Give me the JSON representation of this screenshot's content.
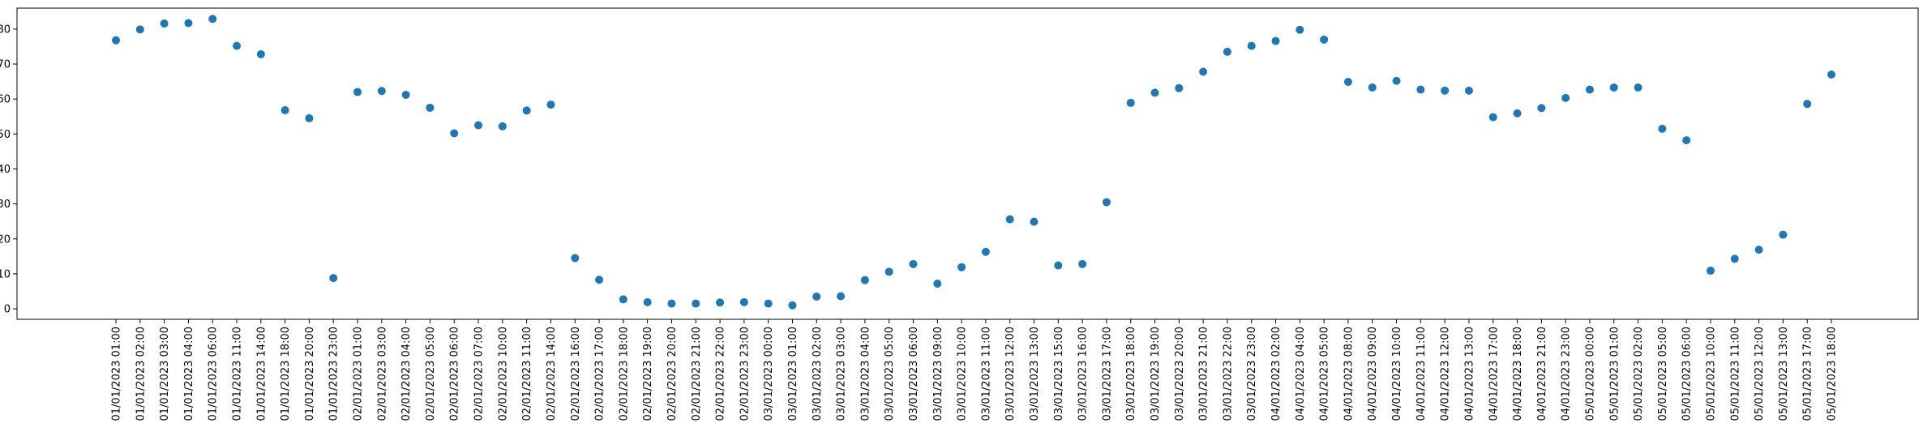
{
  "chart_data": {
    "type": "scatter",
    "title": "",
    "xlabel": "",
    "ylabel": "",
    "ylim": [
      -3,
      86
    ],
    "yticks": [
      0,
      10,
      20,
      30,
      40,
      50,
      60,
      70,
      80
    ],
    "grid": false,
    "legend": "none",
    "marker_color": "#1f77b4",
    "categories": [
      "01/01/2023 01:00",
      "01/01/2023 02:00",
      "01/01/2023 03:00",
      "01/01/2023 04:00",
      "01/01/2023 06:00",
      "01/01/2023 11:00",
      "01/01/2023 14:00",
      "01/01/2023 18:00",
      "01/01/2023 20:00",
      "01/01/2023 23:00",
      "02/01/2023 01:00",
      "02/01/2023 03:00",
      "02/01/2023 04:00",
      "02/01/2023 05:00",
      "02/01/2023 06:00",
      "02/01/2023 07:00",
      "02/01/2023 10:00",
      "02/01/2023 11:00",
      "02/01/2023 14:00",
      "02/01/2023 16:00",
      "02/01/2023 17:00",
      "02/01/2023 18:00",
      "02/01/2023 19:00",
      "02/01/2023 20:00",
      "02/01/2023 21:00",
      "02/01/2023 22:00",
      "02/01/2023 23:00",
      "03/01/2023 00:00",
      "03/01/2023 01:00",
      "03/01/2023 02:00",
      "03/01/2023 03:00",
      "03/01/2023 04:00",
      "03/01/2023 05:00",
      "03/01/2023 06:00",
      "03/01/2023 09:00",
      "03/01/2023 10:00",
      "03/01/2023 11:00",
      "03/01/2023 12:00",
      "03/01/2023 13:00",
      "03/01/2023 15:00",
      "03/01/2023 16:00",
      "03/01/2023 17:00",
      "03/01/2023 18:00",
      "03/01/2023 19:00",
      "03/01/2023 20:00",
      "03/01/2023 21:00",
      "03/01/2023 22:00",
      "03/01/2023 23:00",
      "04/01/2023 02:00",
      "04/01/2023 04:00",
      "04/01/2023 05:00",
      "04/01/2023 08:00",
      "04/01/2023 09:00",
      "04/01/2023 10:00",
      "04/01/2023 11:00",
      "04/01/2023 12:00",
      "04/01/2023 13:00",
      "04/01/2023 17:00",
      "04/01/2023 18:00",
      "04/01/2023 21:00",
      "04/01/2023 23:00",
      "05/01/2023 00:00",
      "05/01/2023 01:00",
      "05/01/2023 02:00",
      "05/01/2023 05:00",
      "05/01/2023 06:00",
      "05/01/2023 10:00",
      "05/01/2023 11:00",
      "05/01/2023 12:00",
      "05/01/2023 13:00",
      "05/01/2023 17:00",
      "05/01/2023 18:00"
    ],
    "values": [
      76.8,
      79.9,
      81.6,
      81.7,
      82.9,
      75.2,
      72.8,
      56.8,
      54.5,
      8.8,
      62.0,
      62.3,
      61.2,
      57.5,
      50.2,
      52.5,
      52.2,
      56.7,
      58.4,
      14.5,
      8.3,
      2.7,
      1.9,
      1.5,
      1.5,
      1.8,
      1.9,
      1.5,
      1.0,
      3.5,
      3.6,
      8.2,
      10.6,
      12.8,
      7.2,
      11.9,
      16.3,
      25.6,
      24.9,
      12.4,
      12.8,
      30.5,
      58.9,
      61.8,
      63.1,
      67.8,
      73.5,
      75.2,
      76.6,
      79.8,
      77.0,
      64.9,
      63.3,
      65.2,
      62.7,
      62.4,
      62.4,
      54.8,
      55.9,
      57.4,
      60.3,
      62.7,
      63.3,
      63.3,
      51.5,
      48.2,
      10.9,
      14.3,
      16.9,
      21.2,
      58.6,
      67.0
    ]
  }
}
